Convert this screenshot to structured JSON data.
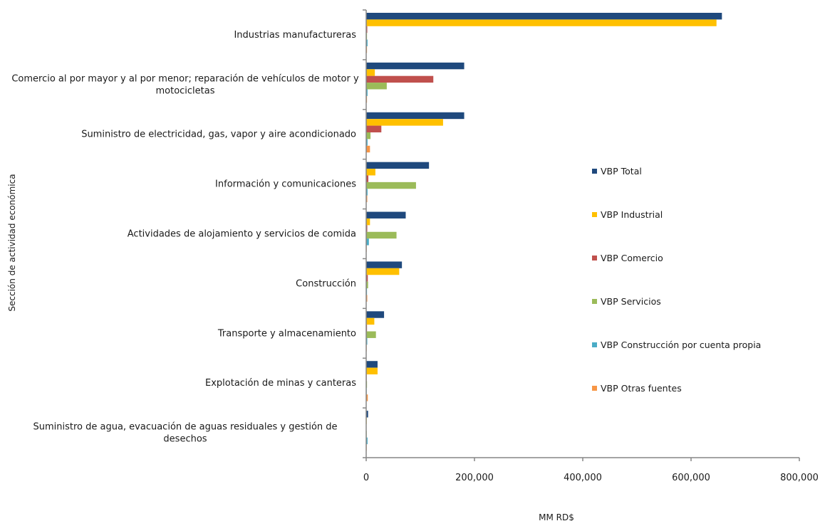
{
  "chart_data": {
    "type": "bar",
    "orientation": "horizontal",
    "categories": [
      [
        "Industrias manufactureras"
      ],
      [
        "Comercio al por mayor y al por menor; reparación de vehículos de motor y",
        "motocicletas"
      ],
      [
        "Suministro de electricidad, gas, vapor y aire acondicionado"
      ],
      [
        "Información y comunicaciones"
      ],
      [
        "Actividades de alojamiento y servicios de comida"
      ],
      [
        "Construcción"
      ],
      [
        "Transporte y almacenamiento"
      ],
      [
        "Explotación de minas y canteras"
      ],
      [
        "Suministro de agua, evacuación de aguas residuales y gestión de",
        "desechos"
      ]
    ],
    "series": [
      {
        "name": "VBP Total",
        "color": "#1F497D",
        "values": [
          657000,
          181000,
          181000,
          116000,
          73000,
          66000,
          33000,
          21000,
          3500
        ]
      },
      {
        "name": "VBP Industrial",
        "color": "#FFC000",
        "values": [
          647000,
          16000,
          142000,
          17000,
          7000,
          61000,
          15000,
          21000,
          1000
        ]
      },
      {
        "name": "VBP Comercio",
        "color": "#C0504D",
        "values": [
          2000,
          124000,
          28000,
          4000,
          2000,
          3000,
          1500,
          1000,
          500
        ]
      },
      {
        "name": "VBP Servicios",
        "color": "#9BBB59",
        "values": [
          1500,
          38000,
          8000,
          92000,
          56000,
          3500,
          18000,
          1500,
          1000
        ]
      },
      {
        "name": " VBP Construcción por cuenta propia",
        "color": "#4BACC6",
        "values": [
          2500,
          2500,
          2500,
          2500,
          5000,
          1500,
          2000,
          1000,
          2500
        ]
      },
      {
        "name": "VBP Otras fuentes",
        "color": "#F79646",
        "values": [
          1500,
          1500,
          7000,
          2000,
          1000,
          2000,
          1000,
          3000,
          1000
        ]
      }
    ],
    "xlim": [
      0,
      800000
    ],
    "xticks": [
      "0",
      "200,000",
      "400,000",
      "600,000",
      "800,000"
    ],
    "xlabel": "MM RD$",
    "ylabel": "Sección de actividad económica",
    "legend_position": "right",
    "grid": false
  }
}
